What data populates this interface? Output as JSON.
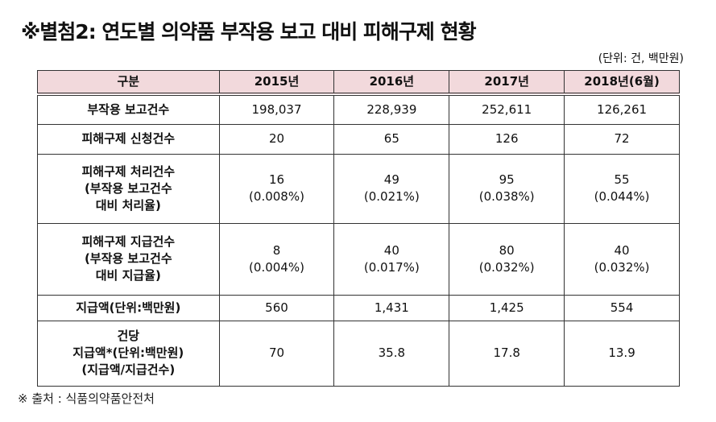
{
  "title": "※별첨2: 연도별 의약품 부작용 보고 대비 피해구제 현황",
  "unit": "(단위: 건, 백만원)",
  "table": {
    "headers": [
      "구분",
      "2015년",
      "2016년",
      "2017년",
      "2018년(6월)"
    ],
    "rows": [
      {
        "label": [
          "부작용 보고건수"
        ],
        "values": [
          [
            "198,037"
          ],
          [
            "228,939"
          ],
          [
            "252,611"
          ],
          [
            "126,261"
          ]
        ]
      },
      {
        "label": [
          "피해구제 신청건수"
        ],
        "values": [
          [
            "20"
          ],
          [
            "65"
          ],
          [
            "126"
          ],
          [
            "72"
          ]
        ]
      },
      {
        "label": [
          "피해구제 처리건수",
          "(부작용 보고건수",
          "대비 처리율)"
        ],
        "values": [
          [
            "16",
            "(0.008%)"
          ],
          [
            "49",
            "(0.021%)"
          ],
          [
            "95",
            "(0.038%)"
          ],
          [
            "55",
            "(0.044%)"
          ]
        ]
      },
      {
        "label": [
          "피해구제 지급건수",
          "(부작용 보고건수",
          "대비 지급율)"
        ],
        "values": [
          [
            "8",
            "(0.004%)"
          ],
          [
            "40",
            "(0.017%)"
          ],
          [
            "80",
            "(0.032%)"
          ],
          [
            "40",
            "(0.032%)"
          ]
        ]
      },
      {
        "label": [
          "지급액(단위:백만원)"
        ],
        "values": [
          [
            "560"
          ],
          [
            "1,431"
          ],
          [
            "1,425"
          ],
          [
            "554"
          ]
        ]
      },
      {
        "label": [
          "건당",
          "지급액*(단위:백만원)",
          "(지급액/지급건수)"
        ],
        "values": [
          [
            "70"
          ],
          [
            "35.8"
          ],
          [
            "17.8"
          ],
          [
            "13.9"
          ]
        ]
      }
    ]
  },
  "footer": "※ 출처 : 식품의약품안전처"
}
